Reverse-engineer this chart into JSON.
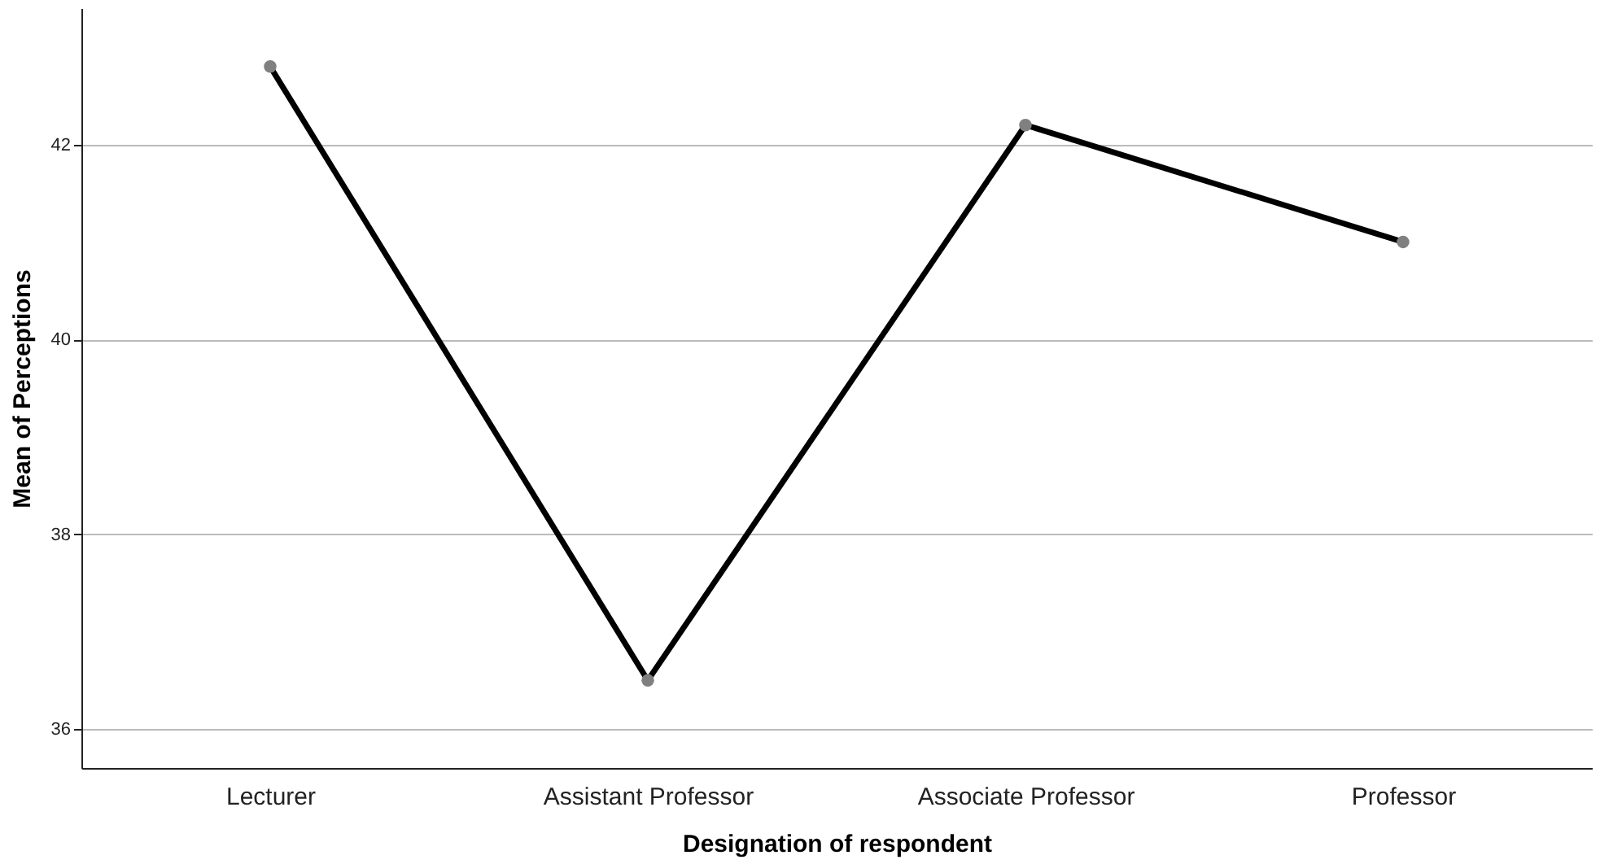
{
  "chart_data": {
    "type": "line",
    "xlabel": "Designation of respondent",
    "ylabel": "Mean of Perceptions",
    "categories": [
      "Lecturer",
      "Assistant Professor",
      "Associate Professor",
      "Professor"
    ],
    "series": [
      {
        "color": "#000000",
        "values": [
          42.8,
          36.5,
          42.2,
          41.0
        ]
      }
    ],
    "ylim": [
      35.6,
      43.4
    ],
    "yticks": [
      36,
      38,
      40,
      42
    ],
    "grid": "y",
    "marker": "circle",
    "line_style": "solid"
  }
}
